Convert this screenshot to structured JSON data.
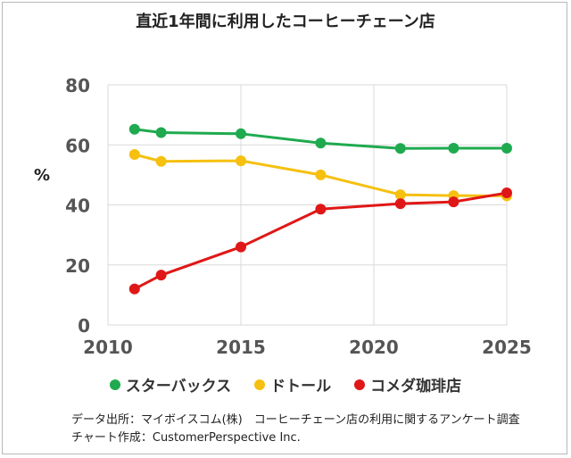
{
  "chart_data": {
    "type": "line",
    "title": "直近1年間に利用したコーヒーチェーン店",
    "xlabel": "",
    "ylabel": "%",
    "xlim": [
      2010,
      2025
    ],
    "ylim": [
      0,
      80
    ],
    "x_ticks": [
      2010,
      2015,
      2020,
      2025
    ],
    "y_ticks": [
      0,
      20,
      40,
      60,
      80
    ],
    "grid": true,
    "legend_position": "bottom",
    "series": [
      {
        "name": "スターバックス",
        "color": "#1faa4f",
        "x": [
          2011,
          2012,
          2015,
          2018,
          2021,
          2023,
          2025
        ],
        "y": [
          65.2,
          64.1,
          63.7,
          60.6,
          58.8,
          58.9,
          58.9
        ]
      },
      {
        "name": "ドトール",
        "color": "#f5c00f",
        "x": [
          2011,
          2012,
          2015,
          2018,
          2021,
          2023,
          2025
        ],
        "y": [
          56.8,
          54.5,
          54.7,
          50.0,
          43.4,
          43.1,
          43.0
        ]
      },
      {
        "name": "コメダ珈琲店",
        "color": "#e01717",
        "x": [
          2011,
          2012,
          2015,
          2018,
          2021,
          2023,
          2025
        ],
        "y": [
          12.0,
          16.6,
          26.0,
          38.6,
          40.4,
          41.0,
          44.0
        ]
      }
    ]
  },
  "footer": {
    "source": "データ出所：マイボイスコム(株)　コーヒーチェーン店の利用に関するアンケート調査",
    "credit": "チャート作成：CustomerPerspective Inc."
  }
}
